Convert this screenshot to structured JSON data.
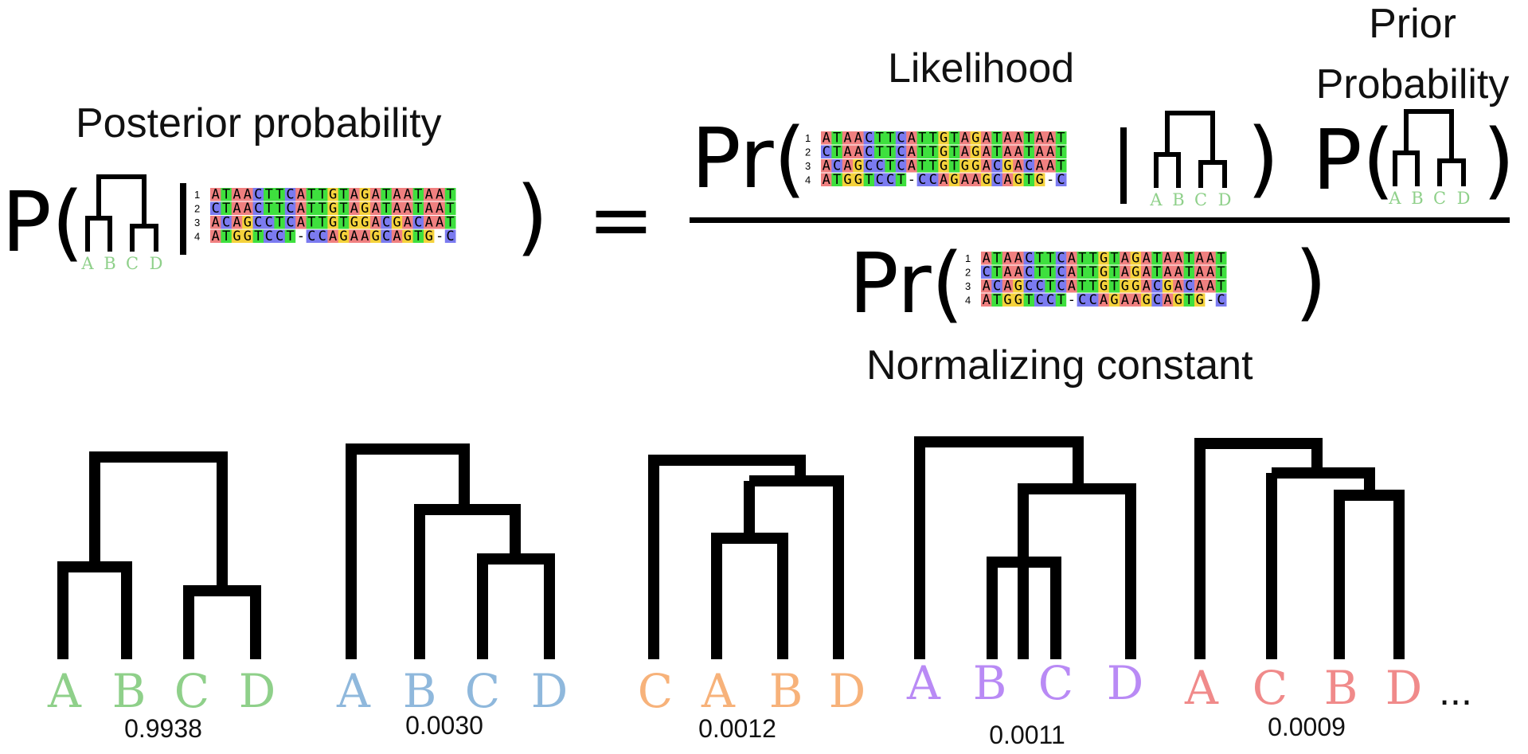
{
  "equation": {
    "posterior_label": "Posterior probability",
    "likelihood_label": "Likelihood",
    "prior_label_line1": "Prior",
    "prior_label_line2": "Probability",
    "normalizing_label": "Normalizing constant",
    "p_symbol": "P(",
    "pr_symbol": "Pr(",
    "close_paren": ")",
    "equals": "=",
    "leaf_labels": [
      "A",
      "B",
      "C",
      "D"
    ],
    "leaf_color": "#8fd08a"
  },
  "alignment": {
    "row_numbers": [
      "1",
      "2",
      "3",
      "4"
    ],
    "sequences_posterior": [
      "ATAACTTCATTGTAGATAATAAT",
      "CTAACTTCATTGTAGATAATAAT",
      "ACAGCCTCATTGTGGACGACAAT",
      "ATGGTCCT-CCAGAAGCAGTG-C"
    ],
    "sequences_likelihood": [
      "ATAACTTCATTGTAGATAATAAT",
      "CTAACTTCATTGTAGATAATAAT",
      "ACAGCCTCATTGTGGACGACAAT",
      "ATGGTCCT-CCAGAAGCAGTG-C"
    ],
    "sequences_normalizing": [
      "ATAACTTCATTGTAGATAATAAT",
      "CTAACTTCATTGTAGATAATAAT",
      "ACAGCCTCATTGTGGACGACAAT",
      "ATGGTCCT-CCAGAAGCAGTG-C"
    ],
    "base_colors": {
      "A": "#f08080",
      "T": "#3ee03e",
      "C": "#7b7bf0",
      "G": "#f5d23c",
      "-": "#ffffff"
    }
  },
  "trees": [
    {
      "labels": [
        "A",
        "B",
        "C",
        "D"
      ],
      "color": "#8fd08a",
      "probability": "0.9938"
    },
    {
      "labels": [
        "A",
        "B",
        "C",
        "D"
      ],
      "color": "#8fb8dc",
      "probability": "0.0030"
    },
    {
      "labels": [
        "C",
        "A",
        "B",
        "D"
      ],
      "color": "#f7b27a",
      "probability": "0.0012"
    },
    {
      "labels": [
        "A",
        "B",
        "C",
        "D"
      ],
      "color": "#b98af5",
      "probability": "0.0011"
    },
    {
      "labels": [
        "A",
        "C",
        "B",
        "D"
      ],
      "color": "#f08a8a",
      "probability": "0.0009"
    }
  ],
  "ellipsis": "..."
}
